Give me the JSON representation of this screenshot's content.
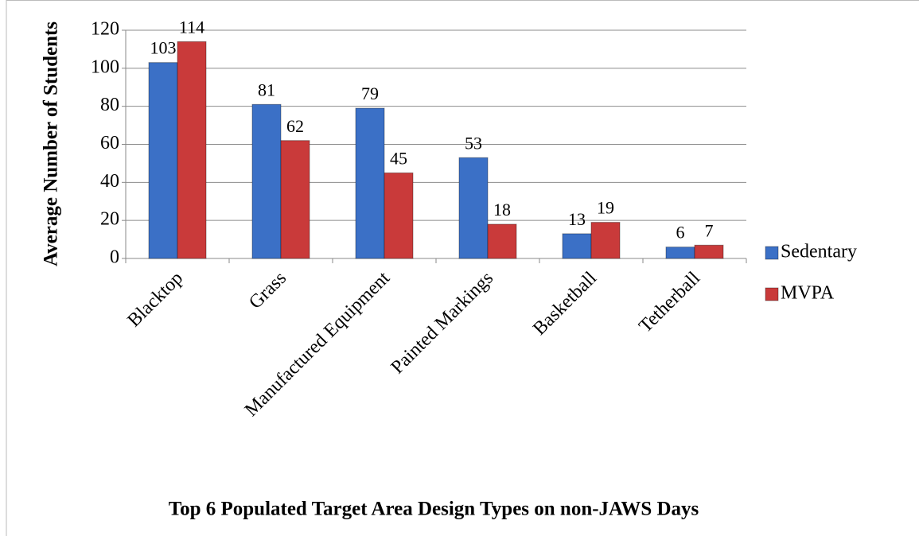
{
  "chart_data": {
    "type": "bar",
    "title": "Top 6 Populated Target Area Design Types on non-JAWS Days",
    "y_label": "Average Number of Students",
    "categories": [
      "Blacktop",
      "Grass",
      "Manufactured Equipment",
      "Painted Markings",
      "Basketball",
      "Tetherball"
    ],
    "series": [
      {
        "name": "Sedentary",
        "color": "#3b70c6",
        "values": [
          103,
          81,
          79,
          53,
          13,
          6
        ]
      },
      {
        "name": "MVPA",
        "color": "#c93a3a",
        "values": [
          114,
          62,
          45,
          18,
          19,
          7
        ]
      }
    ],
    "ylim": [
      0,
      120
    ],
    "yticks": [
      0,
      20,
      40,
      60,
      80,
      100,
      120
    ],
    "grid": true,
    "legend": "right",
    "data_labels": true
  }
}
